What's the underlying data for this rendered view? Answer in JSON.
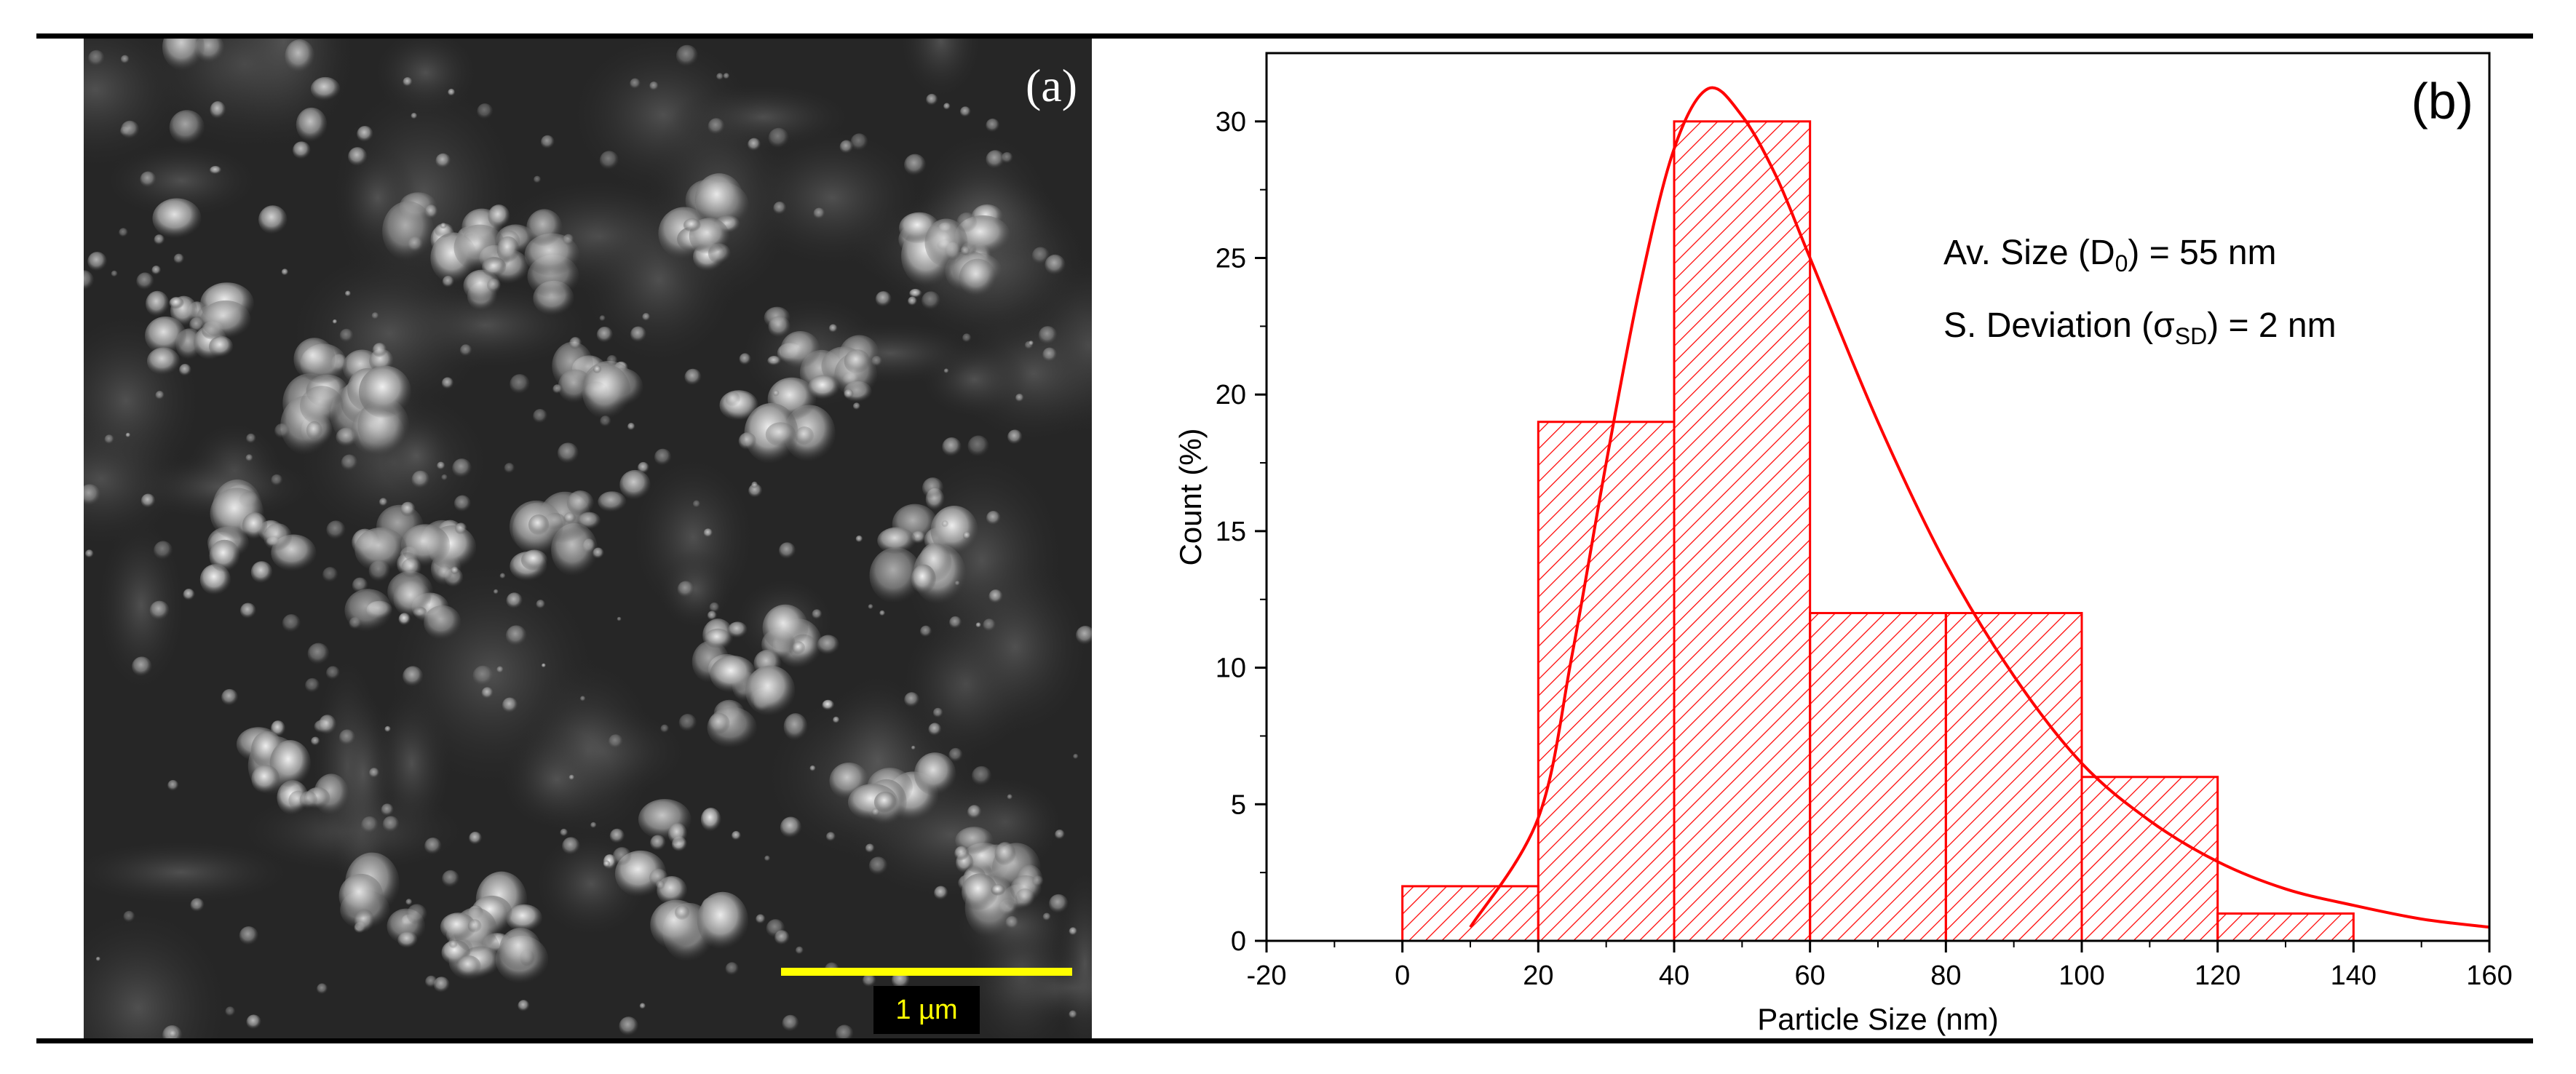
{
  "figure": {
    "panel_a": {
      "label": "(a)",
      "scale_bar_label": "1 µm"
    },
    "panel_b": {
      "label": "(b)"
    }
  },
  "chart_data": {
    "type": "bar",
    "title": "",
    "xlabel": "Particle Size (nm)",
    "ylabel": "Count (%)",
    "xlim": [
      -20,
      160
    ],
    "ylim": [
      0,
      32.5
    ],
    "xticks": [
      -20,
      0,
      20,
      40,
      60,
      80,
      100,
      120,
      140,
      160
    ],
    "yticks": [
      0,
      5,
      10,
      15,
      20,
      25,
      30
    ],
    "bins": [
      {
        "start": 0,
        "end": 20,
        "value": 2
      },
      {
        "start": 20,
        "end": 40,
        "value": 19
      },
      {
        "start": 40,
        "end": 60,
        "value": 30
      },
      {
        "start": 60,
        "end": 80,
        "value": 12
      },
      {
        "start": 80,
        "end": 100,
        "value": 12
      },
      {
        "start": 100,
        "end": 120,
        "value": 6
      },
      {
        "start": 120,
        "end": 140,
        "value": 1
      }
    ],
    "fit_curve": {
      "type": "lognormal",
      "x": [
        10,
        20,
        25,
        30,
        35,
        40,
        45,
        50,
        55,
        60,
        70,
        80,
        90,
        100,
        110,
        120,
        130,
        140,
        150,
        160
      ],
      "y": [
        0.5,
        4.5,
        10.5,
        17.5,
        24,
        29,
        31.2,
        30.2,
        28,
        25,
        19,
        13.8,
        9.7,
        6.5,
        4.4,
        2.9,
        1.9,
        1.3,
        0.8,
        0.5
      ]
    },
    "bar_color": "#ff0000",
    "hatch": "diagonal",
    "grid": false,
    "annotations": [
      {
        "text": "Av. Size (D",
        "sub": "0",
        "after": ") = 55 nm"
      },
      {
        "text": "S. Deviation (σ",
        "sub": "SD",
        "after": ") = 2 nm"
      }
    ]
  }
}
